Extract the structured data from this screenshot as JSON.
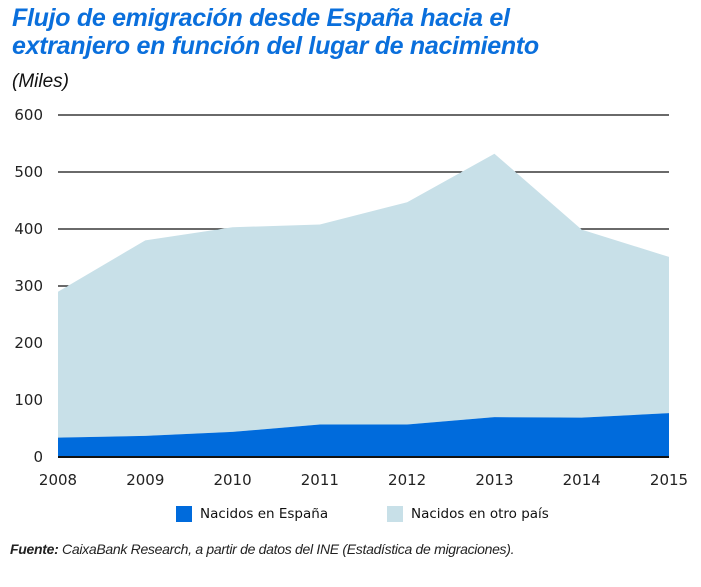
{
  "title_line1": "Flujo de emigración desde España hacia el",
  "title_line2": "extranjero en función del lugar de nacimiento",
  "subtitle": "(Miles)",
  "source_label": "Fuente:",
  "source_text": " CaixaBank Research, a partir de datos del INE (Estadística de migraciones).",
  "colors": {
    "espana": "#006bdc",
    "otro": "#c8e0e8",
    "title": "#0a6fdc",
    "grid": "#111111"
  },
  "chart_data": {
    "type": "area",
    "stacked": true,
    "title": "Flujo de emigración desde España hacia el extranjero en función del lugar de nacimiento",
    "subtitle": "(Miles)",
    "xlabel": "",
    "ylabel": "Miles",
    "x": [
      "2008",
      "2009",
      "2010",
      "2011",
      "2012",
      "2013",
      "2014",
      "2015"
    ],
    "series": [
      {
        "name": "Nacidos en España",
        "values": [
          34,
          37,
          44,
          57,
          57,
          70,
          69,
          77
        ]
      },
      {
        "name": "Nacidos en otro país",
        "values": [
          256,
          343,
          359,
          351,
          390,
          462,
          330,
          274
        ]
      }
    ],
    "totals": [
      290,
      380,
      403,
      408,
      447,
      532,
      399,
      351
    ],
    "ylim": [
      0,
      600
    ],
    "yticks": [
      0,
      100,
      200,
      300,
      400,
      500,
      600
    ],
    "grid": true,
    "legend_position": "bottom"
  }
}
